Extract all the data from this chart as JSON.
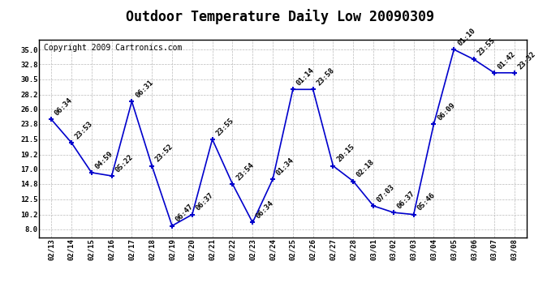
{
  "title": "Outdoor Temperature Daily Low 20090309",
  "copyright": "Copyright 2009 Cartronics.com",
  "x_labels": [
    "02/13",
    "02/14",
    "02/15",
    "02/16",
    "02/17",
    "02/18",
    "02/19",
    "02/20",
    "02/21",
    "02/22",
    "02/23",
    "02/24",
    "02/25",
    "02/26",
    "02/27",
    "02/28",
    "03/01",
    "03/02",
    "03/03",
    "03/04",
    "03/05",
    "03/06",
    "03/07",
    "03/08"
  ],
  "y_values": [
    24.5,
    21.0,
    16.5,
    16.0,
    27.2,
    17.5,
    8.5,
    10.2,
    21.5,
    14.8,
    9.0,
    15.5,
    29.0,
    29.0,
    17.5,
    15.2,
    11.5,
    10.5,
    10.2,
    23.8,
    35.0,
    33.5,
    31.5,
    31.5
  ],
  "point_labels": [
    "06:34",
    "23:53",
    "04:59",
    "05:22",
    "06:31",
    "23:52",
    "06:47",
    "06:37",
    "23:55",
    "23:54",
    "06:34",
    "01:34",
    "01:14",
    "23:58",
    "20:15",
    "02:18",
    "07:03",
    "06:37",
    "05:46",
    "06:09",
    "01:10",
    "23:55",
    "01:42",
    "23:32"
  ],
  "line_color": "#0000cc",
  "marker_color": "#0000cc",
  "background_color": "#ffffff",
  "grid_color": "#bbbbbb",
  "y_ticks": [
    8.0,
    10.2,
    12.5,
    14.8,
    17.0,
    19.2,
    21.5,
    23.8,
    26.0,
    28.2,
    30.5,
    32.8,
    35.0
  ],
  "ylim": [
    6.8,
    36.5
  ],
  "title_fontsize": 12,
  "copyright_fontsize": 7,
  "label_fontsize": 6.5
}
